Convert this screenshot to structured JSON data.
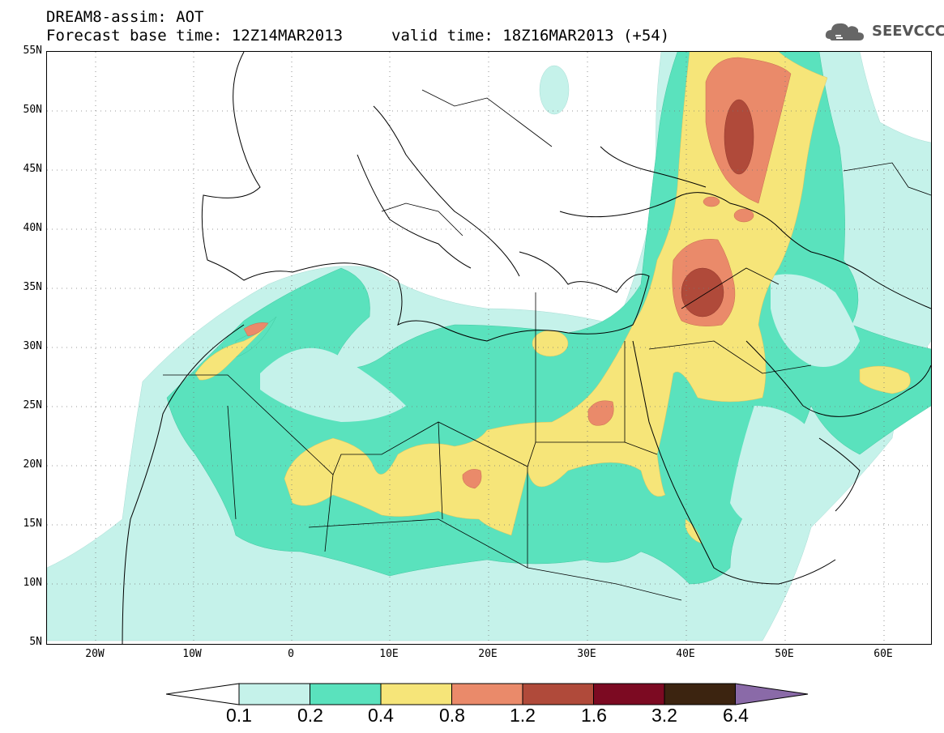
{
  "header": {
    "title_line1": "DREAM8-assim: AOT",
    "title_line2": "Forecast base time: 12Z14MAR2013",
    "valid_time": "valid time: 18Z16MAR2013 (+54)"
  },
  "logo": {
    "text": "SEEVCCC",
    "icon": "cloud-icon"
  },
  "axes": {
    "y_labels": [
      "55N",
      "50N",
      "45N",
      "40N",
      "35N",
      "30N",
      "25N",
      "20N",
      "15N",
      "10N",
      "5N"
    ],
    "x_labels": [
      "20W",
      "10W",
      "0",
      "10E",
      "20E",
      "30E",
      "40E",
      "50E",
      "60E"
    ]
  },
  "legend": {
    "bins": [
      {
        "label": "0.1",
        "color": "#c5f2ea"
      },
      {
        "label": "0.2",
        "color": "#5ae2bd"
      },
      {
        "label": "0.4",
        "color": "#f6e579"
      },
      {
        "label": "0.8",
        "color": "#ea8a6a"
      },
      {
        "label": "1.2",
        "color": "#b04a3a"
      },
      {
        "label": "1.6",
        "color": "#7c0a22"
      },
      {
        "label": "3.2",
        "color": "#3c2410"
      },
      {
        "label": "6.4",
        "color": "#8a6aa8"
      }
    ]
  },
  "colors": {
    "level1": "#c5f2ea",
    "level2": "#5ae2bd",
    "level3": "#f6e579",
    "level4": "#ea8a6a",
    "level5": "#b04a3a"
  }
}
